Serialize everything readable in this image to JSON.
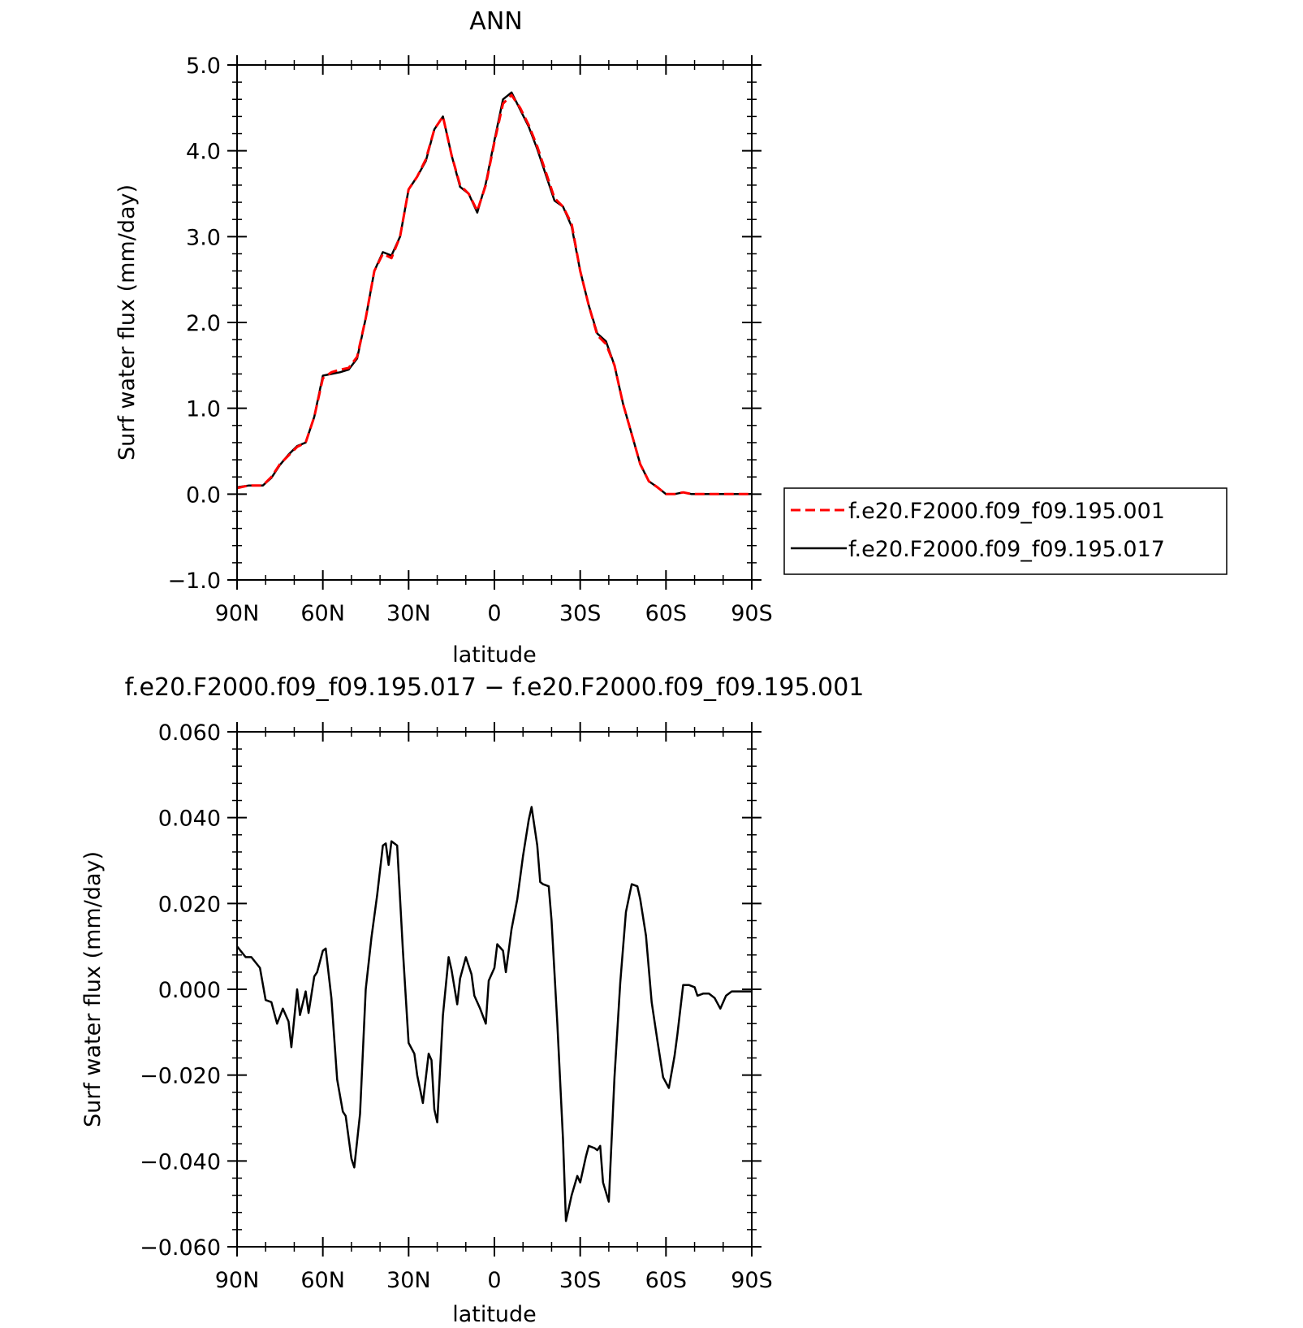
{
  "chart_data": [
    {
      "type": "line",
      "title": "ANN",
      "xlabel": "latitude",
      "ylabel": "Surf water flux (mm/day)",
      "xlim": [
        90,
        -90
      ],
      "ylim": [
        -1.0,
        5.0
      ],
      "xticks": [
        {
          "value": 90,
          "label": "90N"
        },
        {
          "value": 60,
          "label": "60N"
        },
        {
          "value": 30,
          "label": "30N"
        },
        {
          "value": 0,
          "label": "0"
        },
        {
          "value": -30,
          "label": "30S"
        },
        {
          "value": -60,
          "label": "60S"
        },
        {
          "value": -90,
          "label": "90S"
        }
      ],
      "yticks": [
        {
          "value": 5.0,
          "label": "5.0"
        },
        {
          "value": 4.0,
          "label": "4.0"
        },
        {
          "value": 3.0,
          "label": "3.0"
        },
        {
          "value": 2.0,
          "label": "2.0"
        },
        {
          "value": 1.0,
          "label": "1.0"
        },
        {
          "value": 0.0,
          "label": "0.0"
        },
        {
          "value": -1.0,
          "label": "−1.0"
        }
      ],
      "legend_position": "right",
      "x": [
        90,
        86,
        81,
        78,
        75,
        72,
        69,
        66,
        63,
        60,
        57,
        54,
        51,
        48,
        45,
        42,
        39,
        36,
        33,
        30,
        27,
        24,
        21,
        18,
        15,
        12,
        9,
        6,
        3,
        0,
        -3,
        -6,
        -9,
        -12,
        -15,
        -18,
        -21,
        -24,
        -27,
        -30,
        -33,
        -36,
        -39,
        -42,
        -45,
        -48,
        -51,
        -54,
        -57,
        -60,
        -63,
        -66,
        -69,
        -72,
        -75,
        -78,
        -81,
        -84,
        -87,
        -90
      ],
      "series": [
        {
          "name": "f.e20.F2000.f09_f09.195.001",
          "color": "#ff0000",
          "dash": "dashed",
          "values": [
            0.07,
            0.1,
            0.1,
            0.2,
            0.35,
            0.45,
            0.55,
            0.6,
            0.9,
            1.35,
            1.42,
            1.45,
            1.47,
            1.6,
            2.05,
            2.6,
            2.8,
            2.75,
            3.0,
            3.55,
            3.7,
            3.9,
            4.25,
            4.4,
            3.95,
            3.6,
            3.5,
            3.3,
            3.6,
            4.1,
            4.55,
            4.65,
            4.5,
            4.3,
            4.05,
            3.75,
            3.45,
            3.35,
            3.15,
            2.6,
            2.2,
            1.85,
            1.75,
            1.5,
            1.05,
            0.7,
            0.35,
            0.15,
            0.08,
            0.0,
            0.0,
            0.02,
            0.0,
            0.0,
            0.0,
            0.0,
            0.0,
            0.0,
            0.0,
            0.0
          ]
        },
        {
          "name": "f.e20.F2000.f09_f09.195.017",
          "color": "#000000",
          "dash": "solid",
          "values": [
            0.08,
            0.1,
            0.1,
            0.19,
            0.34,
            0.46,
            0.56,
            0.6,
            0.9,
            1.38,
            1.4,
            1.42,
            1.45,
            1.58,
            2.05,
            2.6,
            2.82,
            2.78,
            3.0,
            3.55,
            3.7,
            3.88,
            4.25,
            4.4,
            3.95,
            3.58,
            3.5,
            3.28,
            3.62,
            4.12,
            4.6,
            4.68,
            4.48,
            4.28,
            4.02,
            3.72,
            3.42,
            3.35,
            3.12,
            2.6,
            2.2,
            1.87,
            1.78,
            1.5,
            1.05,
            0.7,
            0.35,
            0.15,
            0.08,
            0.0,
            0.0,
            0.02,
            0.0,
            0.0,
            0.0,
            0.0,
            0.0,
            0.0,
            0.0,
            0.0
          ]
        }
      ]
    },
    {
      "type": "line",
      "title": "f.e20.F2000.f09_f09.195.017 − f.e20.F2000.f09_f09.195.001",
      "xlabel": "latitude",
      "ylabel": "Surf water flux (mm/day)",
      "xlim": [
        90,
        -90
      ],
      "ylim": [
        -0.06,
        0.06
      ],
      "xticks": [
        {
          "value": 90,
          "label": "90N"
        },
        {
          "value": 60,
          "label": "60N"
        },
        {
          "value": 30,
          "label": "30N"
        },
        {
          "value": 0,
          "label": "0"
        },
        {
          "value": -30,
          "label": "30S"
        },
        {
          "value": -60,
          "label": "60S"
        },
        {
          "value": -90,
          "label": "90S"
        }
      ],
      "yticks": [
        {
          "value": 0.06,
          "label": "0.060"
        },
        {
          "value": 0.04,
          "label": "0.040"
        },
        {
          "value": 0.02,
          "label": "0.020"
        },
        {
          "value": 0.0,
          "label": "0.000"
        },
        {
          "value": -0.02,
          "label": "−0.020"
        },
        {
          "value": -0.04,
          "label": "−0.040"
        },
        {
          "value": -0.06,
          "label": "−0.060"
        }
      ],
      "series": [
        {
          "name": "",
          "color": "#000000",
          "dash": "solid",
          "x": [
            90,
            87,
            85,
            82,
            80,
            78,
            76,
            74,
            72,
            71,
            69,
            68,
            66,
            65,
            63,
            62,
            60,
            59,
            57,
            55,
            53,
            52,
            50,
            49,
            47,
            45,
            43,
            41,
            39,
            38,
            37,
            36,
            34,
            32,
            30,
            28,
            27,
            25,
            23,
            22,
            21,
            20,
            18,
            16,
            15,
            13,
            12,
            10,
            8,
            7,
            5,
            3,
            2,
            0,
            -1,
            -3,
            -4,
            -6,
            -8,
            -10,
            -12,
            -13,
            -15,
            -16,
            -17,
            -19,
            -20,
            -22,
            -24,
            -25,
            -27,
            -29,
            -30,
            -32,
            -33,
            -35,
            -36,
            -37,
            -38,
            -40,
            -42,
            -44,
            -46,
            -48,
            -50,
            -51,
            -53,
            -55,
            -57,
            -59,
            -61,
            -63,
            -64,
            -66,
            -68,
            -70,
            -71,
            -73,
            -75,
            -77,
            -79,
            -81,
            -83,
            -85,
            -87,
            -90
          ],
          "values": [
            0.01,
            0.0075,
            0.0075,
            0.005,
            -0.0025,
            -0.003,
            -0.008,
            -0.0045,
            -0.0075,
            -0.0135,
            0.0,
            -0.006,
            -0.0005,
            -0.0055,
            0.003,
            0.004,
            0.009,
            0.0095,
            -0.002,
            -0.021,
            -0.0285,
            -0.0295,
            -0.0395,
            -0.0415,
            -0.029,
            0.0,
            0.012,
            0.022,
            0.0335,
            0.034,
            0.029,
            0.0345,
            0.0335,
            0.009,
            -0.0125,
            -0.015,
            -0.02,
            -0.0265,
            -0.015,
            -0.0165,
            -0.028,
            -0.031,
            -0.006,
            0.0075,
            0.0045,
            -0.0035,
            0.0025,
            0.0075,
            0.0035,
            -0.0015,
            -0.0045,
            -0.008,
            0.002,
            0.005,
            0.0105,
            0.009,
            0.004,
            0.014,
            0.021,
            0.031,
            0.0395,
            0.0425,
            0.0335,
            0.025,
            0.0245,
            0.024,
            0.016,
            -0.008,
            -0.035,
            -0.054,
            -0.048,
            -0.0435,
            -0.045,
            -0.039,
            -0.0365,
            -0.037,
            -0.0375,
            -0.0365,
            -0.045,
            -0.0495,
            -0.0205,
            0.0015,
            0.018,
            0.0245,
            0.024,
            0.021,
            0.0125,
            -0.003,
            -0.012,
            -0.0205,
            -0.023,
            -0.0155,
            -0.0105,
            0.001,
            0.001,
            0.0005,
            -0.0015,
            -0.001,
            -0.001,
            -0.002,
            -0.0045,
            -0.0015,
            -0.0005,
            -0.0005,
            -0.0005,
            -0.0005
          ]
        }
      ]
    }
  ]
}
